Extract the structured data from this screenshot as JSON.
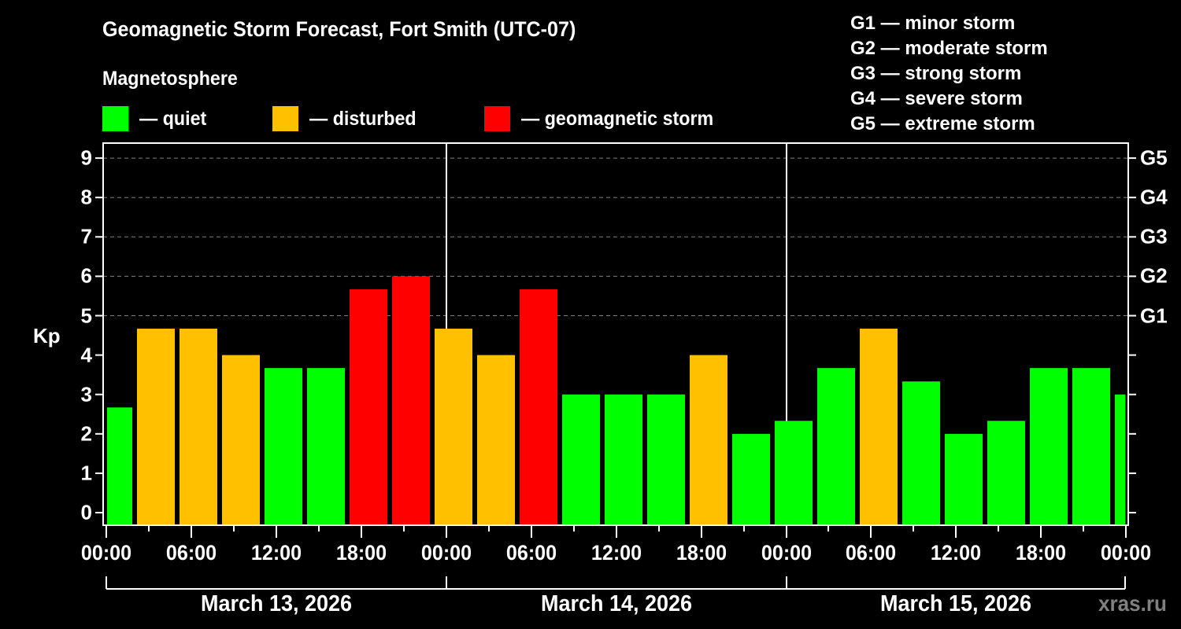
{
  "header": {
    "title": "Geomagnetic Storm Forecast, Fort Smith (UTC-07)",
    "subtitle": "Magnetosphere"
  },
  "legend": {
    "items": [
      {
        "label": "— quiet",
        "color": "#00ff00"
      },
      {
        "label": "— disturbed",
        "color": "#ffc000"
      },
      {
        "label": "— geomagnetic storm",
        "color": "#ff0000"
      }
    ]
  },
  "g_scale_legend": [
    "G1 — minor storm",
    "G2 — moderate storm",
    "G3 — strong storm",
    "G4 — severe storm",
    "G5 — extreme storm"
  ],
  "axes": {
    "y_label": "Kp",
    "y_ticks": [
      "0",
      "1",
      "2",
      "3",
      "4",
      "5",
      "6",
      "7",
      "8",
      "9"
    ],
    "g_ticks": [
      {
        "kp": 5,
        "label": "G1"
      },
      {
        "kp": 6,
        "label": "G2"
      },
      {
        "kp": 7,
        "label": "G3"
      },
      {
        "kp": 8,
        "label": "G4"
      },
      {
        "kp": 9,
        "label": "G5"
      }
    ],
    "x_ticks": [
      "00:00",
      "06:00",
      "12:00",
      "18:00",
      "00:00",
      "06:00",
      "12:00",
      "18:00",
      "00:00",
      "06:00",
      "12:00",
      "18:00",
      "00:00"
    ],
    "dates": [
      "March 13, 2026",
      "March 14, 2026",
      "March 15, 2026"
    ]
  },
  "watermark": "xras.ru",
  "colors": {
    "quiet": "#00ff00",
    "disturbed": "#ffc000",
    "storm": "#ff0000",
    "background": "#000000",
    "grid": "#808080"
  },
  "chart_data": {
    "type": "bar",
    "title": "Geomagnetic Storm Forecast, Fort Smith (UTC-07)",
    "subtitle": "Magnetosphere",
    "xlabel": "",
    "ylabel": "Kp",
    "ylim": [
      0,
      9
    ],
    "grid": "horizontal dashed at Kp 5-9",
    "legend_position": "top",
    "interval_hours": 3,
    "categories": [
      "Mar 13 00:00",
      "Mar 13 03:00",
      "Mar 13 06:00",
      "Mar 13 09:00",
      "Mar 13 12:00",
      "Mar 13 15:00",
      "Mar 13 18:00",
      "Mar 13 21:00",
      "Mar 14 00:00",
      "Mar 14 03:00",
      "Mar 14 06:00",
      "Mar 14 09:00",
      "Mar 14 12:00",
      "Mar 14 15:00",
      "Mar 14 18:00",
      "Mar 14 21:00",
      "Mar 15 00:00",
      "Mar 15 03:00",
      "Mar 15 06:00",
      "Mar 15 09:00",
      "Mar 15 12:00",
      "Mar 15 15:00",
      "Mar 15 18:00",
      "Mar 15 21:00",
      "Mar 16 00:00"
    ],
    "values": [
      2.67,
      4.67,
      4.67,
      4.0,
      3.67,
      3.67,
      5.67,
      6.0,
      4.67,
      4.0,
      5.67,
      3.0,
      3.0,
      3.0,
      4.0,
      2.0,
      2.33,
      3.67,
      4.67,
      3.33,
      2.0,
      2.33,
      3.67,
      3.67,
      3.0
    ],
    "status": [
      "quiet",
      "disturbed",
      "disturbed",
      "disturbed",
      "quiet",
      "quiet",
      "storm",
      "storm",
      "disturbed",
      "disturbed",
      "storm",
      "quiet",
      "quiet",
      "quiet",
      "disturbed",
      "quiet",
      "quiet",
      "quiet",
      "disturbed",
      "quiet",
      "quiet",
      "quiet",
      "quiet",
      "quiet",
      "quiet"
    ],
    "right_axis_labels": {
      "5": "G1",
      "6": "G2",
      "7": "G3",
      "8": "G4",
      "9": "G5"
    }
  }
}
